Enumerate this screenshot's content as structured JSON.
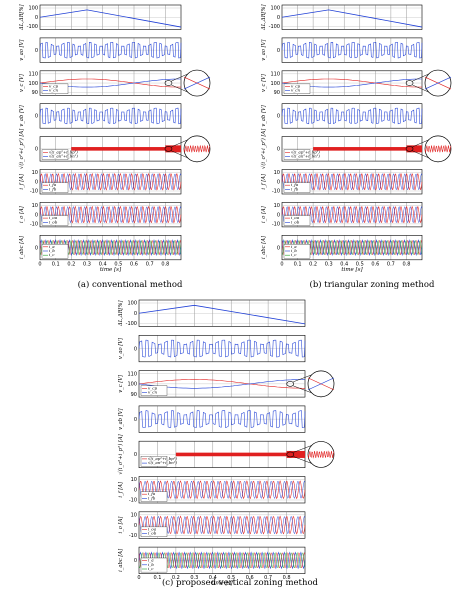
{
  "figure": {
    "captions": [
      "(a) conventional method",
      "(b) triangular zoning method",
      "(c) proposed vertical zoning method"
    ],
    "x_axis_label": "time [s]"
  },
  "chart_data": [
    {
      "type": "line",
      "caption": "(a) conventional method",
      "x_ticks": [
        "0",
        "0.1",
        "0.2",
        "0.3",
        "0.4",
        "0.5",
        "0.6",
        "0.7",
        "0.8"
      ],
      "xlim": [
        0,
        0.9
      ],
      "xlabel": "time [s]",
      "panels": [
        {
          "ylabel": "ΔL,ΔR[%]",
          "y_ticks": [
            "100",
            "0",
            "-100"
          ],
          "ylim": [
            -100,
            100
          ],
          "series": [
            {
              "color": "#1f3fd6",
              "shape": "triangle",
              "peak_x": 0.3,
              "peak_y": 60,
              "start_y": 0,
              "end_y": -80
            }
          ]
        },
        {
          "ylabel": "v_ao [V]",
          "y_ticks": [
            "0"
          ],
          "series": [
            {
              "color": "#1f3fd6",
              "shape": "pwm"
            }
          ]
        },
        {
          "ylabel": "v_c [V]",
          "y_ticks": [
            "110",
            "100",
            "90"
          ],
          "ylim": [
            88,
            112
          ],
          "legend": [
            "v_cp",
            "v_cn"
          ],
          "magnified": true,
          "series": [
            {
              "name": "v_cp",
              "color": "#e02020",
              "shape": "diverge"
            },
            {
              "name": "v_cn",
              "color": "#1f3fd6",
              "shape": "diverge"
            }
          ]
        },
        {
          "ylabel": "v_ab [V]",
          "y_ticks": [
            "0"
          ],
          "series": [
            {
              "color": "#1f3fd6",
              "shape": "pwm"
            }
          ]
        },
        {
          "ylabel": "√(i_o²+i_p²) [A]",
          "y_ticks": [
            "0"
          ],
          "legend": [
            "√(i_ap²+i_bp²)",
            "√(i_an²+i_bn²)"
          ],
          "magnified": true,
          "series": [
            {
              "color": "#e02020",
              "shape": "band"
            }
          ]
        },
        {
          "ylabel": "i_f [A]",
          "y_ticks": [
            "10",
            "0",
            "-10"
          ],
          "legend": [
            "i_fa",
            "i_fb"
          ],
          "series": [
            {
              "color": "#e02020",
              "shape": "sine"
            }
          ]
        },
        {
          "ylabel": "i_o [A]",
          "y_ticks": [
            "10",
            "0",
            "-10"
          ],
          "legend": [
            "i_oa",
            "i_ob"
          ],
          "series": [
            {
              "color": "#e02020",
              "shape": "sine"
            }
          ]
        },
        {
          "ylabel": "i_abc [A]",
          "y_ticks": [
            "0"
          ],
          "legend": [
            "i_a",
            "i_b",
            "i_c"
          ],
          "series": [
            {
              "color": "#1f3fd6",
              "shape": "multi"
            }
          ]
        }
      ]
    },
    {
      "type": "line",
      "caption": "(b) triangular zoning method",
      "x_ticks": [
        "0",
        "0.1",
        "0.2",
        "0.3",
        "0.4",
        "0.5",
        "0.6",
        "0.7",
        "0.8"
      ],
      "xlim": [
        0,
        0.9
      ],
      "xlabel": "time [s]",
      "panels": [
        {
          "ylabel": "ΔL,ΔR[%]",
          "y_ticks": [
            "100",
            "0",
            "-100"
          ],
          "ylim": [
            -100,
            100
          ],
          "series": [
            {
              "color": "#1f3fd6",
              "shape": "triangle",
              "peak_x": 0.3,
              "peak_y": 60,
              "start_y": 0,
              "end_y": -80
            }
          ]
        },
        {
          "ylabel": "v_ao [V]",
          "y_ticks": [
            "0"
          ],
          "series": [
            {
              "color": "#1f3fd6",
              "shape": "pwm"
            }
          ]
        },
        {
          "ylabel": "v_c [V]",
          "y_ticks": [
            "110",
            "100",
            "90"
          ],
          "ylim": [
            88,
            112
          ],
          "legend": [
            "v_cp",
            "v_cn"
          ],
          "magnified": true,
          "series": [
            {
              "name": "v_cp",
              "color": "#e02020",
              "shape": "diverge"
            },
            {
              "name": "v_cn",
              "color": "#1f3fd6",
              "shape": "diverge"
            }
          ]
        },
        {
          "ylabel": "v_ab [V]",
          "y_ticks": [
            "0"
          ],
          "series": [
            {
              "color": "#1f3fd6",
              "shape": "pwm"
            }
          ]
        },
        {
          "ylabel": "√(i_o²+i_p²) [A]",
          "y_ticks": [
            "0"
          ],
          "legend": [
            "√(i_ap²+i_bp²)",
            "√(i_an²+i_bn²)"
          ],
          "magnified": true,
          "series": [
            {
              "color": "#e02020",
              "shape": "band"
            }
          ]
        },
        {
          "ylabel": "i_f [A]",
          "y_ticks": [
            "10",
            "0",
            "-10"
          ],
          "legend": [
            "i_fa",
            "i_fb"
          ],
          "series": [
            {
              "color": "#e02020",
              "shape": "sine"
            }
          ]
        },
        {
          "ylabel": "i_o [A]",
          "y_ticks": [
            "10",
            "0",
            "-10"
          ],
          "legend": [
            "i_oa",
            "i_ob"
          ],
          "series": [
            {
              "color": "#e02020",
              "shape": "sine"
            }
          ]
        },
        {
          "ylabel": "i_abc [A]",
          "y_ticks": [
            "0"
          ],
          "legend": [
            "i_a",
            "i_b",
            "i_c"
          ],
          "series": [
            {
              "color": "#1f3fd6",
              "shape": "multi"
            }
          ]
        }
      ]
    },
    {
      "type": "line",
      "caption": "(c) proposed vertical zoning method",
      "x_ticks": [
        "0",
        "0.1",
        "0.2",
        "0.3",
        "0.4",
        "0.5",
        "0.6",
        "0.7",
        "0.8"
      ],
      "xlim": [
        0,
        0.9
      ],
      "xlabel": "time [s]",
      "panels": [
        {
          "ylabel": "ΔL,ΔR[%]",
          "y_ticks": [
            "100",
            "0",
            "-100"
          ],
          "ylim": [
            -100,
            100
          ],
          "series": [
            {
              "color": "#1f3fd6",
              "shape": "triangle",
              "peak_x": 0.3,
              "peak_y": 60,
              "start_y": 0,
              "end_y": -80
            }
          ]
        },
        {
          "ylabel": "v_ao [V]",
          "y_ticks": [
            "0"
          ],
          "series": [
            {
              "color": "#1f3fd6",
              "shape": "pwm"
            }
          ]
        },
        {
          "ylabel": "v_c [V]",
          "y_ticks": [
            "110",
            "100",
            "90"
          ],
          "ylim": [
            88,
            112
          ],
          "legend": [
            "v_cp",
            "v_cn"
          ],
          "magnified": true,
          "series": [
            {
              "name": "v_cp",
              "color": "#e02020",
              "shape": "diverge"
            },
            {
              "name": "v_cn",
              "color": "#1f3fd6",
              "shape": "diverge"
            }
          ]
        },
        {
          "ylabel": "v_ab [V]",
          "y_ticks": [
            "0"
          ],
          "series": [
            {
              "color": "#1f3fd6",
              "shape": "pwm"
            }
          ]
        },
        {
          "ylabel": "√(i_o²+i_p²) [A]",
          "y_ticks": [
            "0"
          ],
          "legend": [
            "√(i_ap²+i_bp²)",
            "√(i_an²+i_bn²)"
          ],
          "magnified": true,
          "series": [
            {
              "color": "#e02020",
              "shape": "band"
            }
          ]
        },
        {
          "ylabel": "i_f [A]",
          "y_ticks": [
            "10",
            "0",
            "-10"
          ],
          "legend": [
            "i_fa",
            "i_fb"
          ],
          "series": [
            {
              "color": "#e02020",
              "shape": "sine"
            }
          ]
        },
        {
          "ylabel": "i_o [A]",
          "y_ticks": [
            "10",
            "0",
            "-10"
          ],
          "legend": [
            "i_oa",
            "i_ob"
          ],
          "series": [
            {
              "color": "#e02020",
              "shape": "sine"
            }
          ]
        },
        {
          "ylabel": "i_abc [A]",
          "y_ticks": [
            "0"
          ],
          "legend": [
            "i_a",
            "i_b",
            "i_c"
          ],
          "series": [
            {
              "color": "#1f3fd6",
              "shape": "multi"
            }
          ]
        }
      ]
    }
  ]
}
